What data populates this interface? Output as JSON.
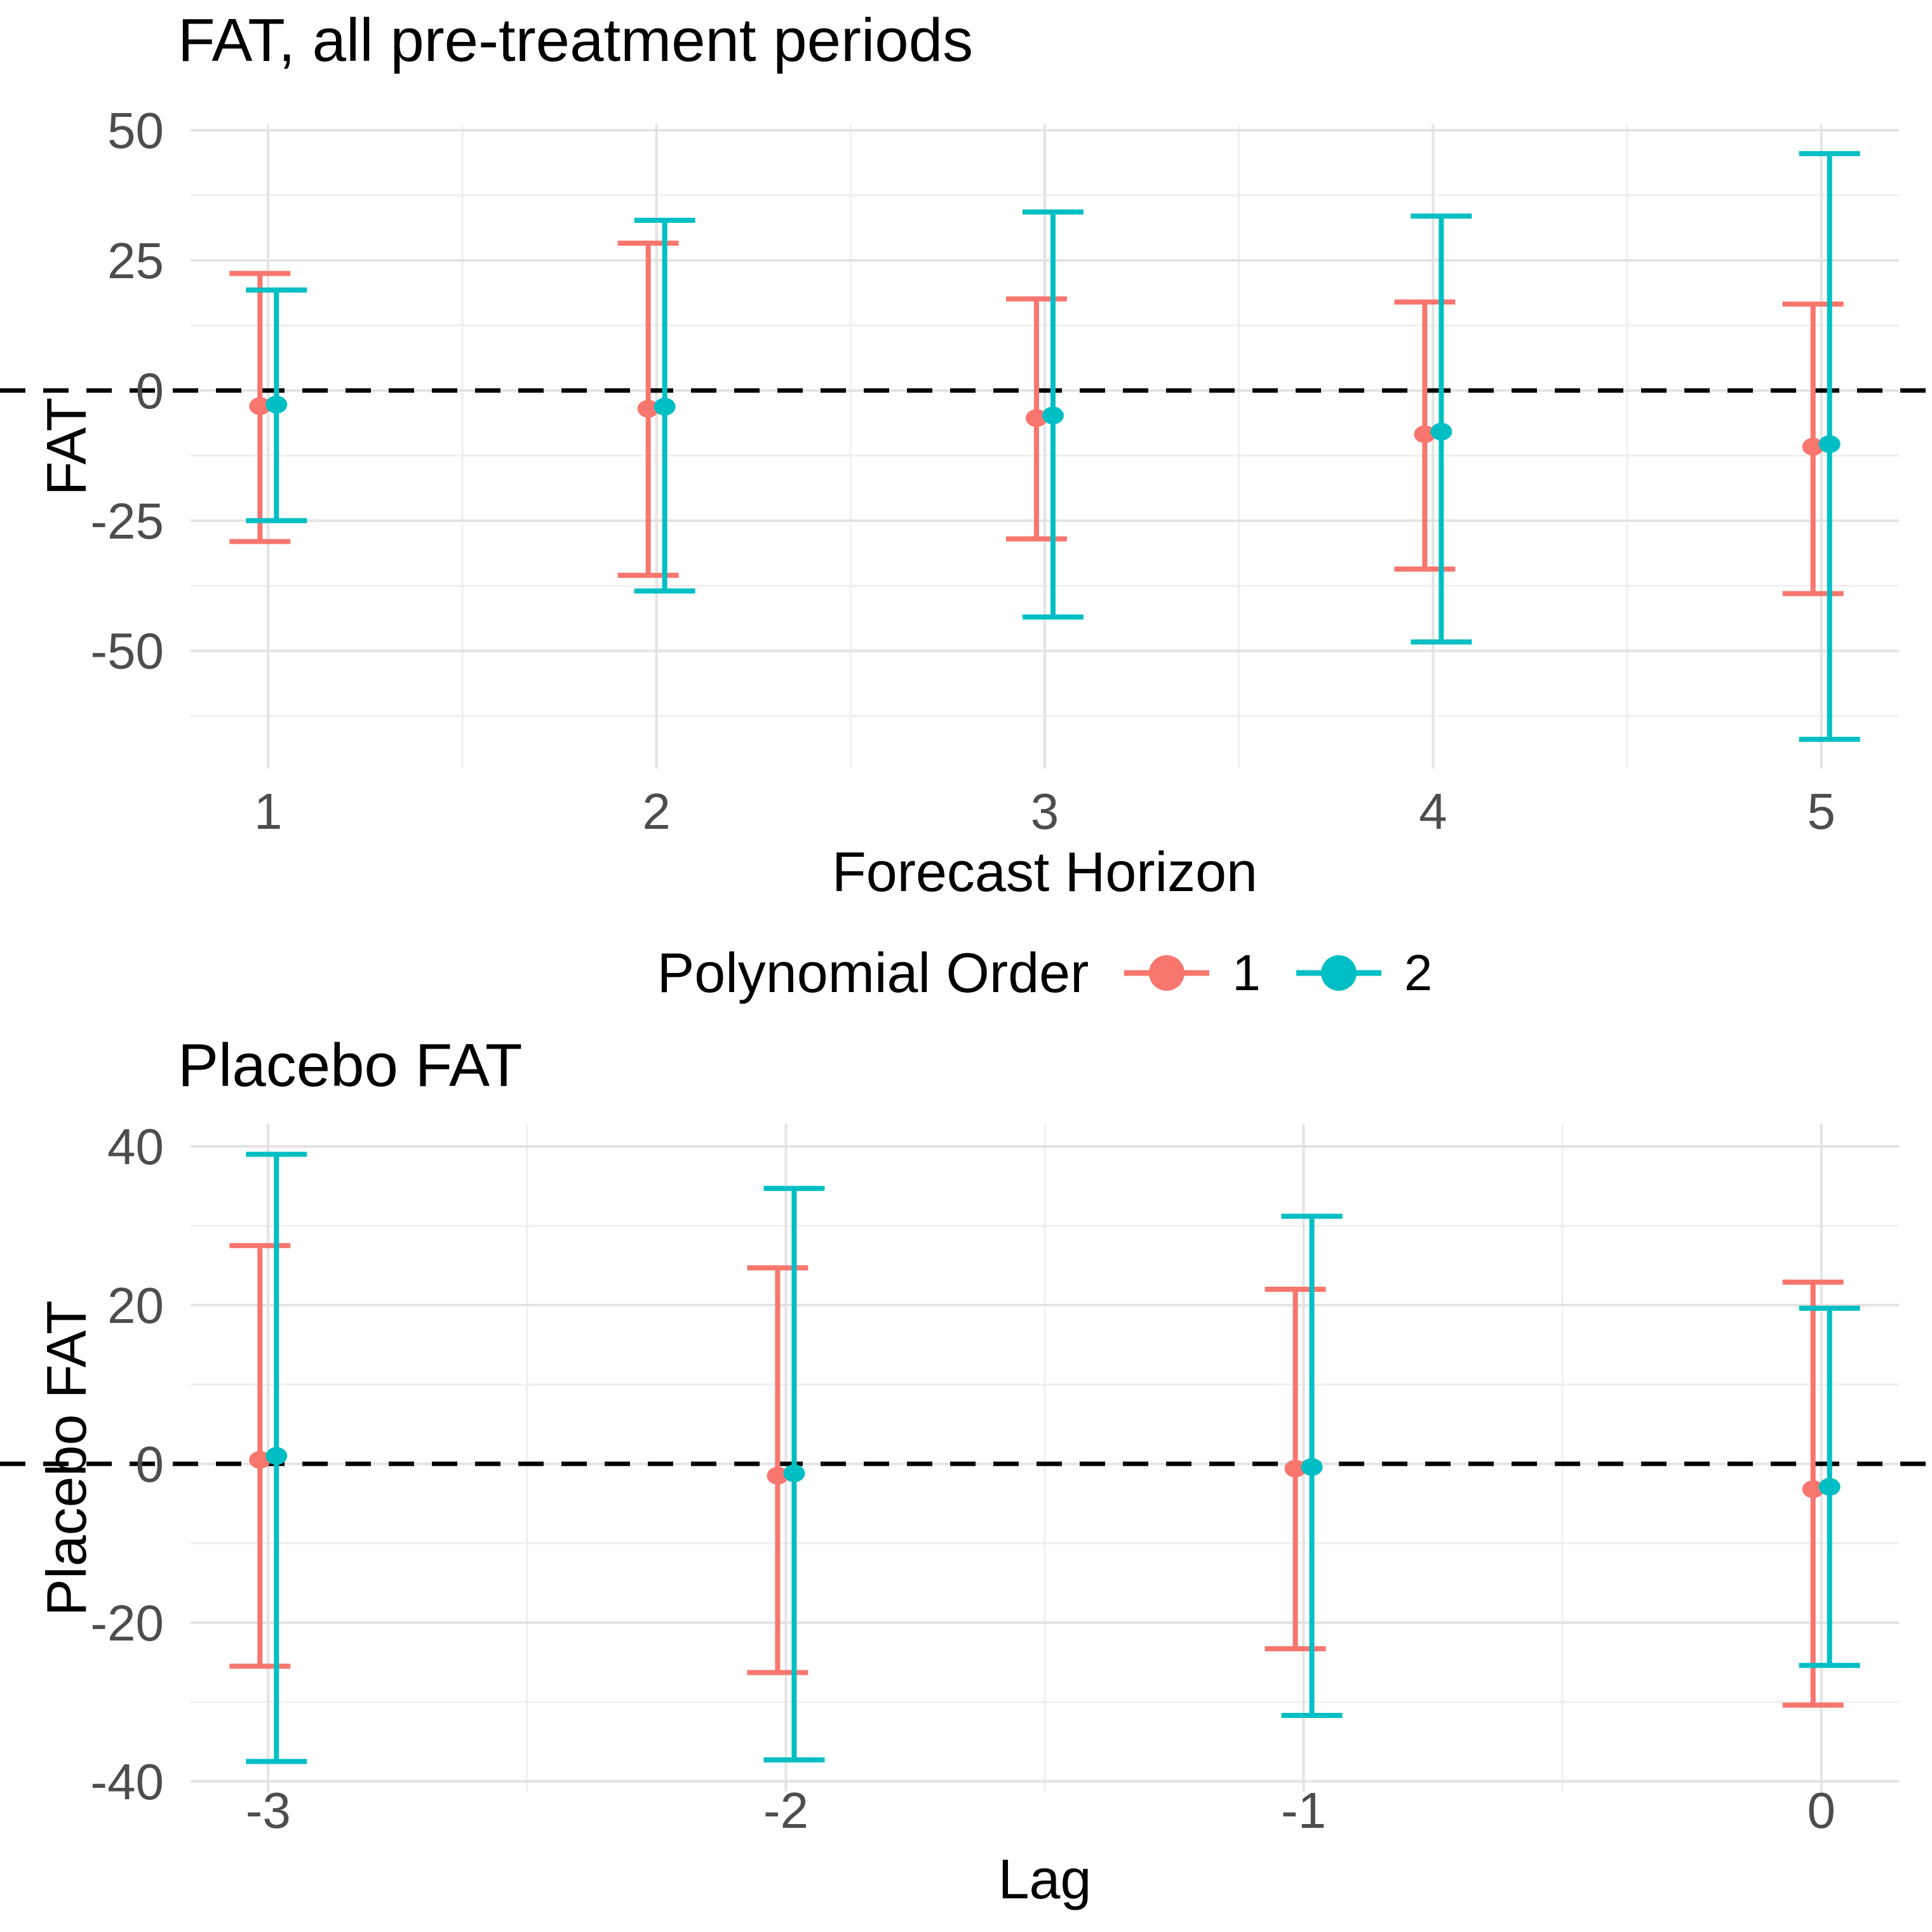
{
  "figure": {
    "background": "#ffffff",
    "tick_label_color": "#4d4d4d",
    "grid_major_color": "#e3e3e3",
    "grid_minor_color": "#efefef",
    "zero_line_color": "#000000"
  },
  "legend": {
    "title": "Polynomial Order",
    "position": "bottom-center-between-panels",
    "items": [
      {
        "label": "1",
        "color": "#F8766D"
      },
      {
        "label": "2",
        "color": "#00BFC4"
      }
    ]
  },
  "chart_data": [
    {
      "type": "scatter",
      "subtype": "point-with-errorbars",
      "title": "FAT, all pre-treatment periods",
      "xlabel": "Forecast Horizon",
      "ylabel": "FAT",
      "x": [
        1,
        2,
        3,
        4,
        5
      ],
      "x_tick_labels": [
        "1",
        "2",
        "3",
        "4",
        "5"
      ],
      "xlim": [
        0.8,
        5.2
      ],
      "minor_x": [
        1.5,
        2.5,
        3.5,
        4.5
      ],
      "y_ticks": [
        50,
        25,
        0,
        -25,
        -50
      ],
      "y_tick_labels": [
        "50",
        "25",
        "0",
        "-25",
        "-50"
      ],
      "minor_y": [
        37.5,
        12.5,
        -12.5,
        -37.5,
        -62.5
      ],
      "ylim": [
        -72.6,
        51.1
      ],
      "zero_line": 0,
      "grid": true,
      "series": [
        {
          "name": "1",
          "color": "#F8766D",
          "estimates": [
            -3.0,
            -3.5,
            -5.3,
            -8.4,
            -10.8
          ],
          "lower": [
            -29.0,
            -35.5,
            -28.5,
            -34.3,
            -39.0
          ],
          "upper": [
            22.5,
            28.3,
            17.6,
            17.0,
            16.6
          ]
        },
        {
          "name": "2",
          "color": "#00BFC4",
          "estimates": [
            -2.7,
            -3.1,
            -4.8,
            -7.9,
            -10.3
          ],
          "lower": [
            -25.0,
            -38.5,
            -43.5,
            -48.3,
            -67.0
          ],
          "upper": [
            19.3,
            32.7,
            34.3,
            33.5,
            45.5
          ]
        }
      ]
    },
    {
      "type": "scatter",
      "subtype": "point-with-errorbars",
      "title": "Placebo FAT",
      "xlabel": "Lag",
      "ylabel": "Placebo FAT",
      "x": [
        -3,
        -2,
        -1,
        0
      ],
      "x_tick_labels": [
        "-3",
        "-2",
        "-1",
        "0"
      ],
      "xlim": [
        -3.15,
        0.15
      ],
      "minor_x": [
        -2.5,
        -1.5,
        -0.5
      ],
      "y_ticks": [
        40,
        20,
        0,
        -20,
        -40
      ],
      "y_tick_labels": [
        "40",
        "20",
        "0",
        "-20",
        "-40"
      ],
      "minor_y": [
        30,
        10,
        -10,
        -30
      ],
      "ylim": [
        -41.3,
        42.8
      ],
      "zero_line": 0,
      "grid": true,
      "series": [
        {
          "name": "1",
          "color": "#F8766D",
          "estimates": [
            0.5,
            -1.5,
            -0.6,
            -3.2
          ],
          "lower": [
            -25.5,
            -26.3,
            -23.3,
            -30.4
          ],
          "upper": [
            27.5,
            24.7,
            22.0,
            22.9
          ]
        },
        {
          "name": "2",
          "color": "#00BFC4",
          "estimates": [
            1.0,
            -1.2,
            -0.4,
            -2.9
          ],
          "lower": [
            -37.5,
            -37.3,
            -31.7,
            -25.4
          ],
          "upper": [
            39.0,
            34.7,
            31.2,
            19.6
          ]
        }
      ]
    }
  ]
}
